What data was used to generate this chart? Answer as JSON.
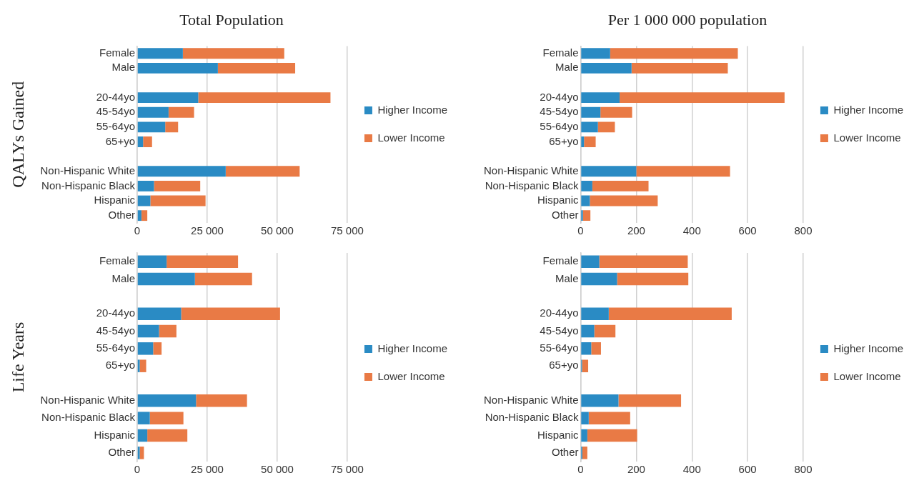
{
  "chart_data": [
    {
      "type": "bar",
      "orientation": "horizontal",
      "stacked": true,
      "title": "Total Population",
      "ylabel": "QALYs Gained",
      "categories": [
        "Female",
        "Male",
        null,
        "20-44yo",
        "45-54yo",
        "55-64yo",
        "65+yo",
        null,
        "Non-Hispanic White",
        "Non-Hispanic Black",
        "Hispanic",
        "Other"
      ],
      "series": [
        {
          "name": "Higher Income",
          "color": "#2a8bc4",
          "values": [
            16300,
            28800,
            null,
            21800,
            11200,
            10000,
            2100,
            null,
            31600,
            6000,
            4700,
            1500
          ]
        },
        {
          "name": "Lower Income",
          "color": "#e97a45",
          "values": [
            36200,
            27600,
            null,
            47200,
            9100,
            4600,
            3200,
            null,
            26400,
            16500,
            19700,
            2100
          ]
        }
      ],
      "xlim": [
        0,
        75000
      ],
      "xticks": [
        0,
        {
          "value": 25000,
          "label": "25 000"
        },
        {
          "value": 50000,
          "label": "50 000"
        },
        {
          "value": 75000,
          "label": "75 000"
        }
      ],
      "grid": "x",
      "legend": "right"
    },
    {
      "type": "bar",
      "orientation": "horizontal",
      "stacked": true,
      "title": "Per 1 000 000 population",
      "categories": [
        "Female",
        "Male",
        null,
        "20-44yo",
        "45-54yo",
        "55-64yo",
        "65+yo",
        null,
        "Non-Hispanic White",
        "Non-Hispanic Black",
        "Hispanic",
        "Other"
      ],
      "series": [
        {
          "name": "Higher Income",
          "color": "#2a8bc4",
          "values": [
            106,
            183,
            null,
            140,
            71,
            62,
            12,
            null,
            200,
            42,
            33,
            8
          ]
        },
        {
          "name": "Lower Income",
          "color": "#e97a45",
          "values": [
            459,
            346,
            null,
            593,
            114,
            61,
            42,
            null,
            337,
            202,
            244,
            27
          ]
        }
      ],
      "xlim": [
        0,
        800
      ],
      "xticks": [
        0,
        200,
        400,
        600,
        800
      ],
      "grid": "x",
      "legend": "right"
    },
    {
      "type": "bar",
      "orientation": "horizontal",
      "stacked": true,
      "ylabel": "Life Years",
      "categories": [
        "Female",
        "Male",
        null,
        "20-44yo",
        "45-54yo",
        "55-64yo",
        "65+yo",
        null,
        "Non-Hispanic White",
        "Non-Hispanic Black",
        "Hispanic",
        "Other"
      ],
      "series": [
        {
          "name": "Higher Income",
          "color": "#2a8bc4",
          "values": [
            10500,
            20600,
            null,
            15700,
            7800,
            5700,
            900,
            null,
            21000,
            4500,
            3600,
            900
          ]
        },
        {
          "name": "Lower Income",
          "color": "#e97a45",
          "values": [
            25500,
            20400,
            null,
            35300,
            6200,
            3000,
            2300,
            null,
            18200,
            12000,
            14300,
            1500
          ]
        }
      ],
      "xlim": [
        0,
        75000
      ],
      "xticks": [
        0,
        {
          "value": 25000,
          "label": "25 000"
        },
        {
          "value": 50000,
          "label": "50 000"
        },
        {
          "value": 75000,
          "label": "75 000"
        }
      ],
      "grid": "x",
      "legend": "right"
    },
    {
      "type": "bar",
      "orientation": "horizontal",
      "stacked": true,
      "categories": [
        "Female",
        "Male",
        null,
        "20-44yo",
        "45-54yo",
        "55-64yo",
        "65+yo",
        null,
        "Non-Hispanic White",
        "Non-Hispanic Black",
        "Hispanic",
        "Other"
      ],
      "series": [
        {
          "name": "Higher Income",
          "color": "#2a8bc4",
          "values": [
            67,
            131,
            null,
            101,
            49,
            38,
            5,
            null,
            136,
            29,
            24,
            6
          ]
        },
        {
          "name": "Lower Income",
          "color": "#e97a45",
          "values": [
            318,
            256,
            null,
            442,
            76,
            35,
            22,
            null,
            225,
            149,
            179,
            18
          ]
        }
      ],
      "xlim": [
        0,
        800
      ],
      "xticks": [
        0,
        200,
        400,
        600,
        800
      ],
      "grid": "x",
      "legend": "right"
    }
  ]
}
